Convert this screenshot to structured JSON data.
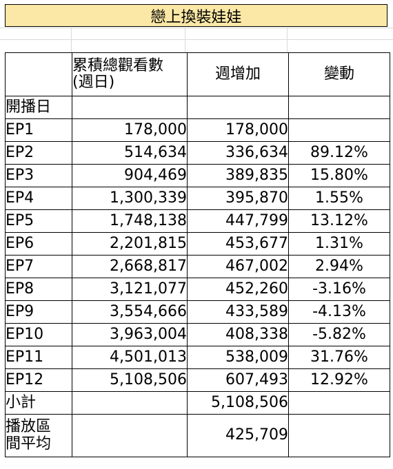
{
  "title": "戀上換裝娃娃",
  "headers": {
    "col0": "",
    "col1": "累積總觀看數\n(週日)",
    "col2": "週增加",
    "col3": "變動"
  },
  "premiere_label": "開播日",
  "episodes": [
    {
      "ep": "EP1",
      "cumulative": "178,000",
      "weekly": "178,000",
      "change": ""
    },
    {
      "ep": "EP2",
      "cumulative": "514,634",
      "weekly": "336,634",
      "change": "89.12%"
    },
    {
      "ep": "EP3",
      "cumulative": "904,469",
      "weekly": "389,835",
      "change": "15.80%"
    },
    {
      "ep": "EP4",
      "cumulative": "1,300,339",
      "weekly": "395,870",
      "change": "1.55%"
    },
    {
      "ep": "EP5",
      "cumulative": "1,748,138",
      "weekly": "447,799",
      "change": "13.12%"
    },
    {
      "ep": "EP6",
      "cumulative": "2,201,815",
      "weekly": "453,677",
      "change": "1.31%"
    },
    {
      "ep": "EP7",
      "cumulative": "2,668,817",
      "weekly": "467,002",
      "change": "2.94%"
    },
    {
      "ep": "EP8",
      "cumulative": "3,121,077",
      "weekly": "452,260",
      "change": "-3.16%"
    },
    {
      "ep": "EP9",
      "cumulative": "3,554,666",
      "weekly": "433,589",
      "change": "-4.13%"
    },
    {
      "ep": "EP10",
      "cumulative": "3,963,004",
      "weekly": "408,338",
      "change": "-5.82%"
    },
    {
      "ep": "EP11",
      "cumulative": "4,501,013",
      "weekly": "538,009",
      "change": "31.76%"
    },
    {
      "ep": "EP12",
      "cumulative": "5,108,506",
      "weekly": "607,493",
      "change": "12.92%"
    }
  ],
  "subtotal": {
    "label": "小計",
    "value": "5,108,506"
  },
  "average": {
    "label": "播放區\n間平均",
    "value": "425,709"
  },
  "colors": {
    "title_bg": "#fbe8a6",
    "grid_line": "#d9d9d9",
    "border": "#000000"
  }
}
